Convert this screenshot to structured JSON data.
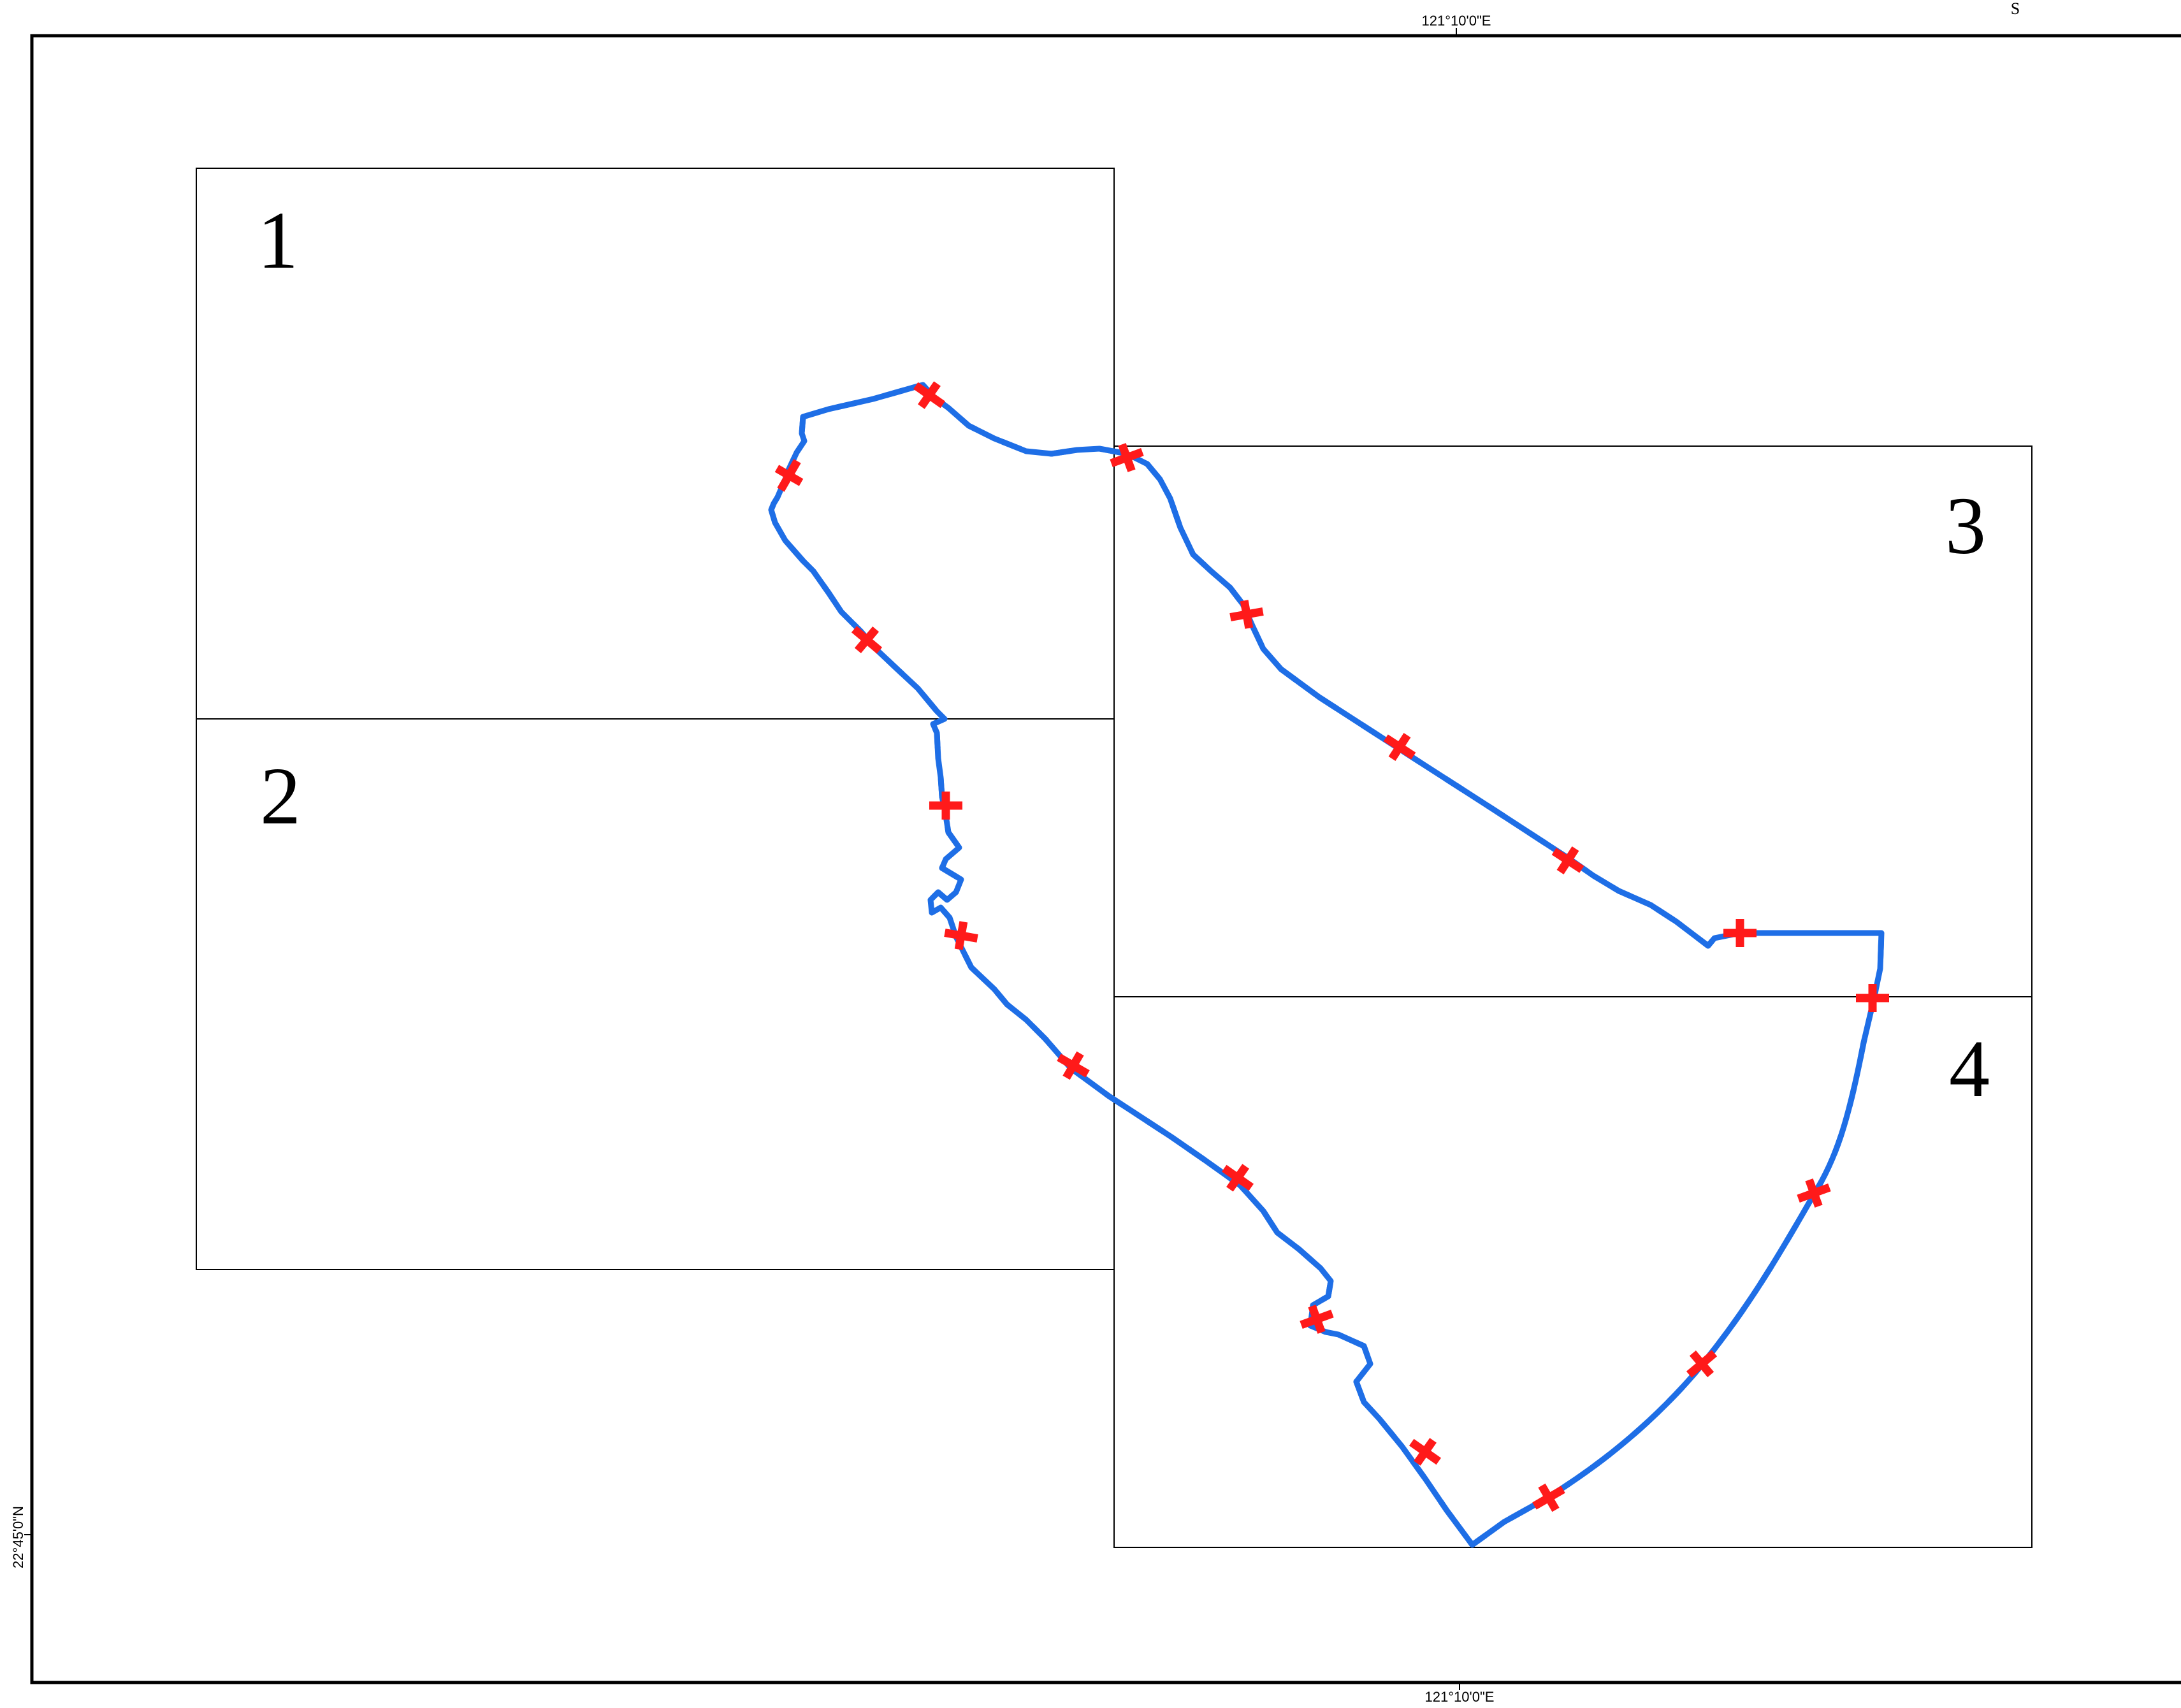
{
  "coordinates": {
    "top_label": "121°10'0\"E",
    "bottom_label": "121°10'0\"E",
    "left_label": "22°45'0\"N"
  },
  "top_right_label": "S",
  "sheets": [
    {
      "label": "1"
    },
    {
      "label": "2"
    },
    {
      "label": "3"
    },
    {
      "label": "4"
    }
  ],
  "colors": {
    "boundary_line": "#1e6ee6",
    "boundary_dash": "#ff1a1a",
    "crossing_marks": "#ff1a1a",
    "sheet_grid": "#000000"
  }
}
